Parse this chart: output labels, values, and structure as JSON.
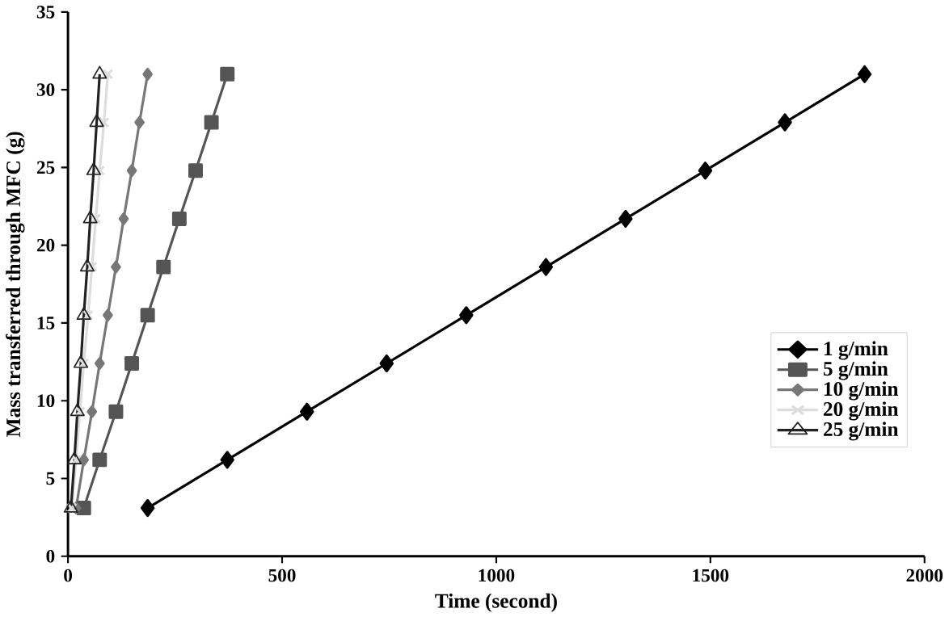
{
  "chart_data": {
    "type": "line",
    "xlabel": "Time (second)",
    "ylabel": "Mass transferred through MFC (g)",
    "xlim": [
      0,
      2000
    ],
    "xticks": [
      0,
      500,
      1000,
      1500,
      2000
    ],
    "ylim": [
      0,
      35
    ],
    "yticks": [
      0,
      5,
      10,
      15,
      20,
      25,
      30,
      35
    ],
    "legend": "bottom right",
    "grid": false,
    "line_style": "solid",
    "series": [
      {
        "name": "1 g/min",
        "color": "#000000",
        "marker": "diamond",
        "x": [
          186,
          372,
          558,
          744,
          930,
          1116,
          1302,
          1488,
          1674,
          1860
        ],
        "values": [
          3.1,
          6.2,
          9.3,
          12.4,
          15.5,
          18.6,
          21.7,
          24.8,
          27.9,
          31
        ]
      },
      {
        "name": "5 g/min",
        "color": "#555555",
        "marker": "square",
        "x": [
          37,
          74,
          112,
          149,
          186,
          223,
          260,
          298,
          335,
          372
        ],
        "values": [
          3.1,
          6.2,
          9.3,
          12.4,
          15.5,
          18.6,
          21.7,
          24.8,
          27.9,
          31
        ]
      },
      {
        "name": "10 g/min",
        "color": "#777777",
        "marker": "diamond",
        "x": [
          19,
          37,
          56,
          74,
          93,
          112,
          130,
          149,
          167,
          186
        ],
        "values": [
          3.1,
          6.2,
          9.3,
          12.4,
          15.5,
          18.6,
          21.7,
          24.8,
          27.9,
          31
        ]
      },
      {
        "name": "20 g/min",
        "color": "#dddddd",
        "marker": "cross",
        "x": [
          9,
          19,
          28,
          37,
          47,
          56,
          65,
          74,
          84,
          93
        ],
        "values": [
          3.1,
          6.2,
          9.3,
          12.4,
          15.5,
          18.6,
          21.7,
          24.8,
          27.9,
          31
        ]
      },
      {
        "name": "25 g/min",
        "color": "#222222",
        "marker": "triangle",
        "x": [
          7,
          15,
          22,
          30,
          37,
          45,
          52,
          60,
          67,
          74
        ],
        "values": [
          3.1,
          6.2,
          9.3,
          12.4,
          15.5,
          18.6,
          21.7,
          24.8,
          27.9,
          31
        ]
      }
    ]
  }
}
